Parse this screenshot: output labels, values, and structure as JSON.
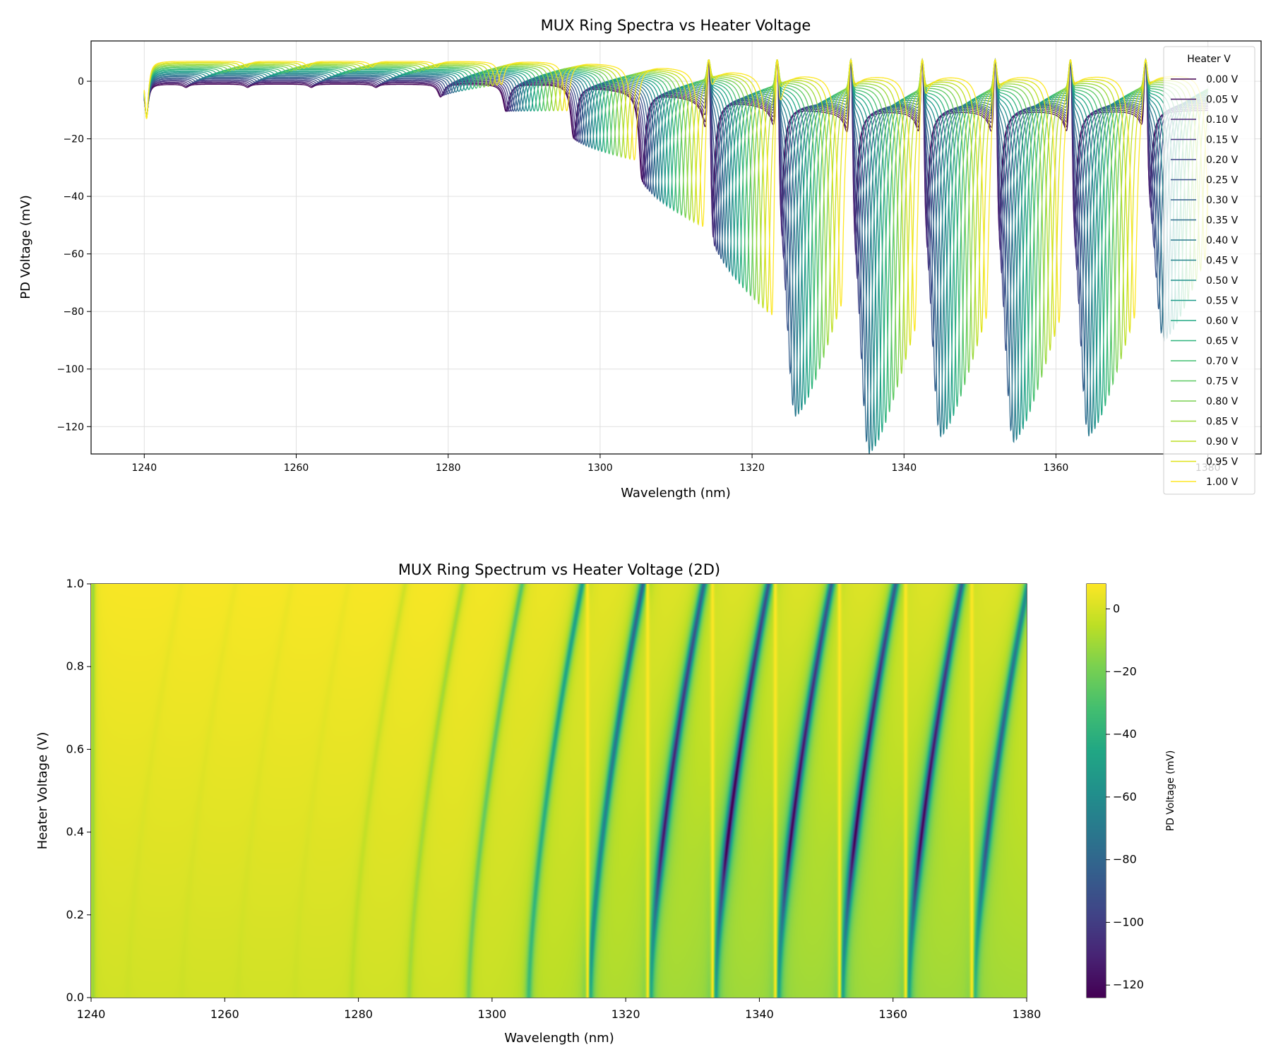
{
  "chart_data": [
    {
      "type": "line",
      "title": "MUX Ring Spectra vs Heater Voltage",
      "xlabel": "Wavelength (nm)",
      "ylabel": "PD Voltage (mV)",
      "xlim": [
        1233,
        1387
      ],
      "ylim": [
        -129.5,
        14
      ],
      "xticks": [
        1240,
        1260,
        1280,
        1300,
        1320,
        1340,
        1360,
        1380
      ],
      "xtick_labels": [
        "1240",
        "1260",
        "1280",
        "1300",
        "1320",
        "1340",
        "1360",
        "1380"
      ],
      "yticks": [
        0,
        -20,
        -40,
        -60,
        -80,
        -100,
        -120
      ],
      "ytick_labels": [
        "0",
        "−20",
        "−40",
        "−60",
        "−80",
        "−100",
        "−120"
      ],
      "grid": true,
      "legend": {
        "title": "Heater V",
        "placement": "right"
      },
      "x_range_nm": [
        1240,
        1380
      ],
      "resonances": [
        {
          "wavelength_nm": 1240.3,
          "depth_mV": 20
        },
        {
          "wavelength_nm": 1245.5,
          "depth_mV": 2
        },
        {
          "wavelength_nm": 1253.6,
          "depth_mV": 2
        },
        {
          "wavelength_nm": 1262.0,
          "depth_mV": 2
        },
        {
          "wavelength_nm": 1270.5,
          "depth_mV": 2
        },
        {
          "wavelength_nm": 1279.0,
          "depth_mV": 8
        },
        {
          "wavelength_nm": 1287.6,
          "depth_mV": 17
        },
        {
          "wavelength_nm": 1296.5,
          "depth_mV": 33
        },
        {
          "wavelength_nm": 1305.5,
          "depth_mV": 55
        },
        {
          "wavelength_nm": 1314.6,
          "depth_mV": 85
        },
        {
          "wavelength_nm": 1323.7,
          "depth_mV": 112
        },
        {
          "wavelength_nm": 1333.4,
          "depth_mV": 124
        },
        {
          "wavelength_nm": 1342.8,
          "depth_mV": 118
        },
        {
          "wavelength_nm": 1352.4,
          "depth_mV": 120
        },
        {
          "wavelength_nm": 1362.3,
          "depth_mV": 118
        },
        {
          "wavelength_nm": 1372.2,
          "depth_mV": 85
        }
      ],
      "spikes_nm": [
        1314.3,
        1323.3,
        1333.0,
        1342.4,
        1352.0,
        1361.9,
        1371.8
      ],
      "spike_peak_mV": 7.5,
      "max_shift_nm_at_1V": 8,
      "series": [
        {
          "name": "0.00 V",
          "voltage": 0.0,
          "color": "#440154"
        },
        {
          "name": "0.05 V",
          "voltage": 0.05,
          "color": "#471365"
        },
        {
          "name": "0.10 V",
          "voltage": 0.1,
          "color": "#482475"
        },
        {
          "name": "0.15 V",
          "voltage": 0.15,
          "color": "#463480"
        },
        {
          "name": "0.20 V",
          "voltage": 0.2,
          "color": "#414487"
        },
        {
          "name": "0.25 V",
          "voltage": 0.25,
          "color": "#3b528b"
        },
        {
          "name": "0.30 V",
          "voltage": 0.3,
          "color": "#355f8d"
        },
        {
          "name": "0.35 V",
          "voltage": 0.35,
          "color": "#2f6c8e"
        },
        {
          "name": "0.40 V",
          "voltage": 0.4,
          "color": "#2a788e"
        },
        {
          "name": "0.45 V",
          "voltage": 0.45,
          "color": "#25848e"
        },
        {
          "name": "0.50 V",
          "voltage": 0.5,
          "color": "#21918c"
        },
        {
          "name": "0.55 V",
          "voltage": 0.55,
          "color": "#1e9c89"
        },
        {
          "name": "0.60 V",
          "voltage": 0.6,
          "color": "#22a884"
        },
        {
          "name": "0.65 V",
          "voltage": 0.65,
          "color": "#2fb47c"
        },
        {
          "name": "0.70 V",
          "voltage": 0.7,
          "color": "#44bf70"
        },
        {
          "name": "0.75 V",
          "voltage": 0.75,
          "color": "#5ec962"
        },
        {
          "name": "0.80 V",
          "voltage": 0.8,
          "color": "#7ad151"
        },
        {
          "name": "0.85 V",
          "voltage": 0.85,
          "color": "#9bd93c"
        },
        {
          "name": "0.90 V",
          "voltage": 0.9,
          "color": "#bddf26"
        },
        {
          "name": "0.95 V",
          "voltage": 0.95,
          "color": "#dfe318"
        },
        {
          "name": "1.00 V",
          "voltage": 1.0,
          "color": "#fde725"
        }
      ]
    },
    {
      "type": "heatmap",
      "title": "MUX Ring Spectrum vs Heater Voltage (2D)",
      "xlabel": "Wavelength (nm)",
      "ylabel": "Heater Voltage (V)",
      "xlim": [
        1240,
        1380
      ],
      "ylim": [
        0,
        1
      ],
      "xticks": [
        1240,
        1260,
        1280,
        1300,
        1320,
        1340,
        1360,
        1380
      ],
      "xtick_labels": [
        "1240",
        "1260",
        "1280",
        "1300",
        "1320",
        "1340",
        "1360",
        "1380"
      ],
      "yticks": [
        0,
        0.2,
        0.4,
        0.6,
        0.8,
        1.0
      ],
      "ytick_labels": [
        "0.0",
        "0.2",
        "0.4",
        "0.6",
        "0.8",
        "1.0"
      ],
      "colormap": "viridis",
      "colorbar": {
        "label": "PD Voltage (mV)",
        "range": [
          -124,
          8
        ],
        "ticks": [
          0,
          -20,
          -40,
          -60,
          -80,
          -100,
          -120
        ],
        "tick_labels": [
          "0",
          "−20",
          "−40",
          "−60",
          "−80",
          "−100",
          "−120"
        ]
      }
    }
  ]
}
